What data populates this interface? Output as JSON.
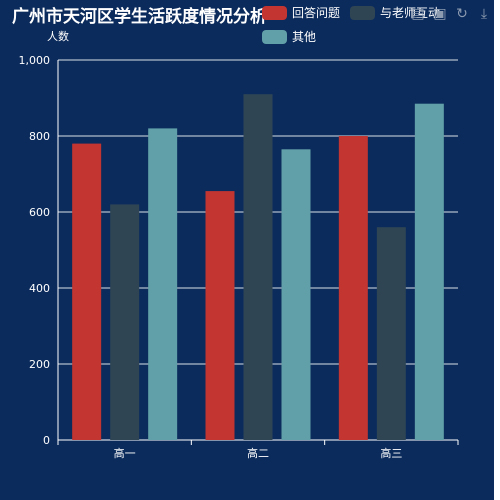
{
  "chart_data": {
    "type": "bar",
    "title": "广州市天河区学生活跃度情况分析",
    "ylabel": "人数",
    "xlabel": "",
    "categories": [
      "高一",
      "高二",
      "高三"
    ],
    "ylim": [
      0,
      1000
    ],
    "yticks": [
      "0",
      "200",
      "400",
      "600",
      "800",
      "1,000"
    ],
    "grid": true,
    "legend_position": "top-right",
    "series": [
      {
        "name": "回答问题",
        "color": "#c23531",
        "values": [
          780,
          655,
          800
        ]
      },
      {
        "name": "与老师互动",
        "color": "#2f4554",
        "values": [
          620,
          910,
          560
        ]
      },
      {
        "name": "其他",
        "color": "#61a0a8",
        "values": [
          820,
          765,
          885
        ]
      }
    ]
  },
  "toolbox": {
    "icons": [
      "data-view-icon",
      "save-image-icon",
      "restore-icon",
      "download-icon"
    ]
  }
}
